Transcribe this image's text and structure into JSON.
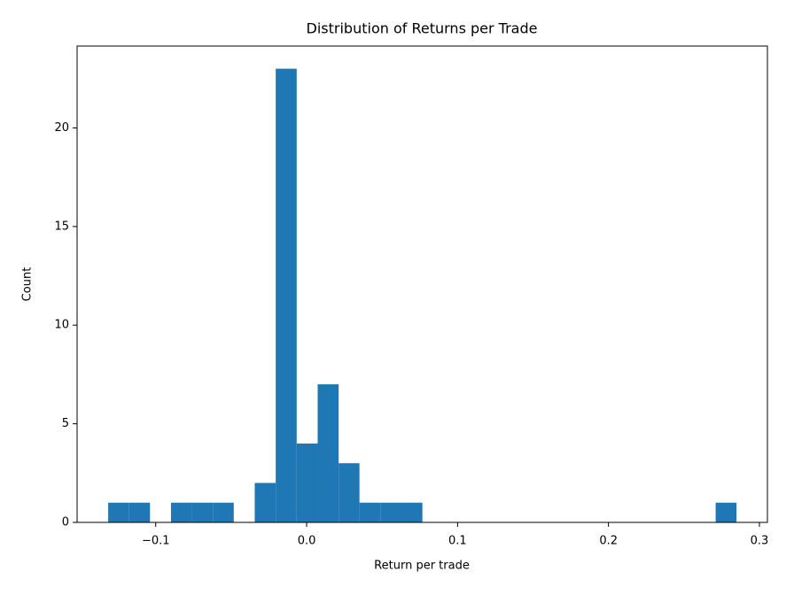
{
  "chart_data": {
    "type": "histogram",
    "title": "Distribution of Returns per Trade",
    "x_label": "Return per trade",
    "y_label": "Count",
    "color": "#1f77b4",
    "bins": [
      -0.1315,
      -0.1176,
      -0.1038,
      -0.0899,
      -0.076,
      -0.0621,
      -0.0483,
      -0.0344,
      -0.0205,
      -0.0066,
      0.0073,
      0.0212,
      0.035,
      0.0489,
      0.0628,
      0.0767,
      0.0905,
      0.1044,
      0.1183,
      0.1322,
      0.146,
      0.1599,
      0.1738,
      0.1877,
      0.2016,
      0.2154,
      0.2293,
      0.2432,
      0.2571,
      0.271,
      0.2848
    ],
    "counts": [
      1,
      1,
      0,
      1,
      1,
      1,
      0,
      2,
      23,
      4,
      7,
      3,
      1,
      1,
      1,
      0,
      0,
      0,
      0,
      0,
      0,
      0,
      0,
      0,
      0,
      0,
      0,
      0,
      0,
      1
    ],
    "xlim": [
      -0.1521,
      0.3053
    ],
    "ylim": [
      0,
      24.15
    ],
    "xticks": [
      {
        "value": -0.1,
        "label": "−0.1"
      },
      {
        "value": 0,
        "label": "0.0"
      },
      0.1,
      0.2,
      0.3
    ],
    "yticks": [
      0,
      5,
      10,
      15,
      20
    ]
  }
}
